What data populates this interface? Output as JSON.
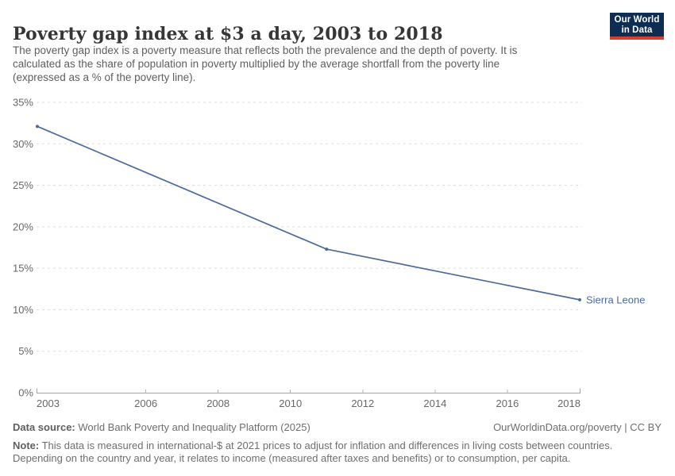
{
  "header": {
    "title": "Poverty gap index at $3 a day, 2003 to 2018",
    "subtitle_lines": [
      "The poverty gap index is a poverty measure that reflects both the prevalence and the depth of poverty. It is",
      "calculated as the share of population in poverty multiplied by the average shortfall from the poverty line",
      "(expressed as a % of the poverty line)."
    ],
    "logo": {
      "line1": "Our World",
      "line2": "in Data"
    }
  },
  "chart_data": {
    "type": "line",
    "title": "Poverty gap index at $3 a day, 2003 to 2018",
    "series": [
      {
        "name": "Sierra Leone",
        "points": [
          {
            "x": 2003,
            "y": 32.1
          },
          {
            "x": 2011,
            "y": 17.3
          },
          {
            "x": 2018,
            "y": 11.2
          }
        ]
      }
    ],
    "x_ticks": [
      2003,
      2006,
      2008,
      2010,
      2012,
      2014,
      2016,
      2018
    ],
    "y_ticks": [
      0,
      5,
      10,
      15,
      20,
      25,
      30,
      35
    ],
    "y_tick_suffix": "%",
    "xlim": [
      2003,
      2018
    ],
    "ylim": [
      0,
      35
    ],
    "grid": "horizontal-dashed",
    "legend_position": "end-of-line",
    "entity_label": "Sierra Leone"
  },
  "footer": {
    "data_source_label": "Data source:",
    "data_source_text": " World Bank Poverty and Inequality Platform (2025)",
    "attribution": "OurWorldinData.org/poverty | CC BY",
    "note_label": "Note:",
    "note_line1": " This data is measured in international-$ at 2021 prices to adjust for inflation and differences in living costs between countries.",
    "note_line2": "Depending on the country and year, it relates to income (measured after taxes and benefits) or to consumption, per capita."
  },
  "colors": {
    "line": "#4c6a9c",
    "entity_label": "#4c6a9c",
    "gridline": "#dddddd",
    "axis": "#a5a5a5",
    "tick": "#b5b5b5",
    "axis_text": "#686868",
    "logo_bg": "#0f2d52",
    "logo_accent": "#dc3c2f"
  }
}
